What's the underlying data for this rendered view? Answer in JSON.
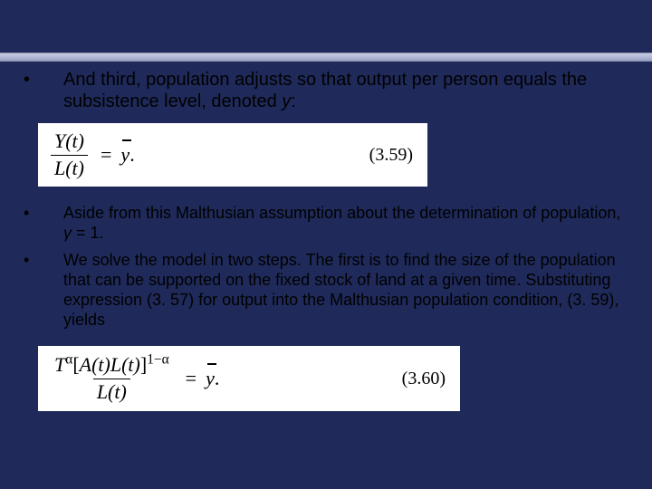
{
  "background_color": "#1f2a5a",
  "topbar_gradient": [
    "#c9cde0",
    "#9aa3c8"
  ],
  "text_color": "#000000",
  "equation_bg": "#ffffff",
  "font_body": "Arial",
  "font_math": "Times New Roman",
  "bullets_top": {
    "b1_pre": "And third, population adjusts so that output per person equals the subsistence level, denoted ",
    "b1_var": "y",
    "b1_post": ":"
  },
  "equation1": {
    "num": "Y(t)",
    "den": "L(t)",
    "eq": "=",
    "rhs_symbol": "y",
    "rhs_suffix": ".",
    "number": "(3.59)"
  },
  "bullets_bottom": {
    "b2_pre": "Aside from this Malthusian assumption about the  determination of population, ",
    "b2_var": "γ",
    "b2_post": " = 1.",
    "b3": "We solve the model in two steps. The first is to find the size of the population that can be supported on the fixed stock of land at a given time. Substituting expression (3. 57) for output into the Malthusian population condition, (3. 59), yields"
  },
  "equation2": {
    "num_html": "T<sup>α</sup>[A(t)L(t)]<sup>1−α</sup>",
    "num_T": "T",
    "num_alpha": "α",
    "num_bracket_open": "[",
    "num_A": "A(t)L(t)",
    "num_bracket_close": "]",
    "num_exp": "1−α",
    "den": "L(t)",
    "eq": "=",
    "rhs_symbol": "y",
    "rhs_suffix": ".",
    "number": "(3.60)"
  }
}
